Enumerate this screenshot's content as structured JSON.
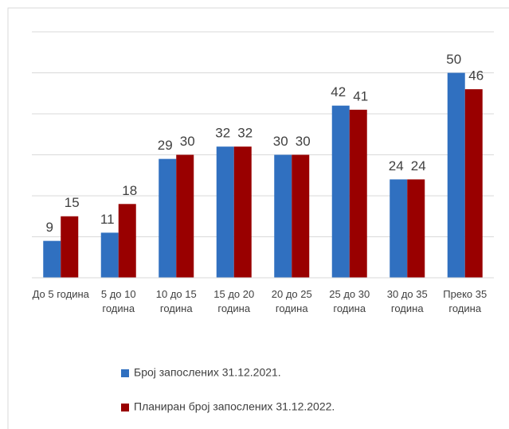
{
  "chart_data": {
    "type": "bar",
    "categories": [
      "До 5 година",
      "5 до 10 година",
      "10 до 15 година",
      "15 до 20 година",
      "20 до 25 година",
      "25 до 30 година",
      "30 до 35 година",
      "Преко 35 година"
    ],
    "series": [
      {
        "name": "Број запослених 31.12.2021.",
        "color": "#3070c0",
        "values": [
          9,
          11,
          29,
          32,
          30,
          42,
          24,
          50
        ]
      },
      {
        "name": "Планиран број запослених 31.12.2022.",
        "color": "#990000",
        "values": [
          15,
          18,
          30,
          32,
          30,
          41,
          24,
          46
        ]
      }
    ],
    "ylim": [
      0,
      60
    ],
    "yticks": [
      0,
      10,
      20,
      30,
      40,
      50,
      60
    ],
    "grid": true,
    "legend": "bottom"
  }
}
